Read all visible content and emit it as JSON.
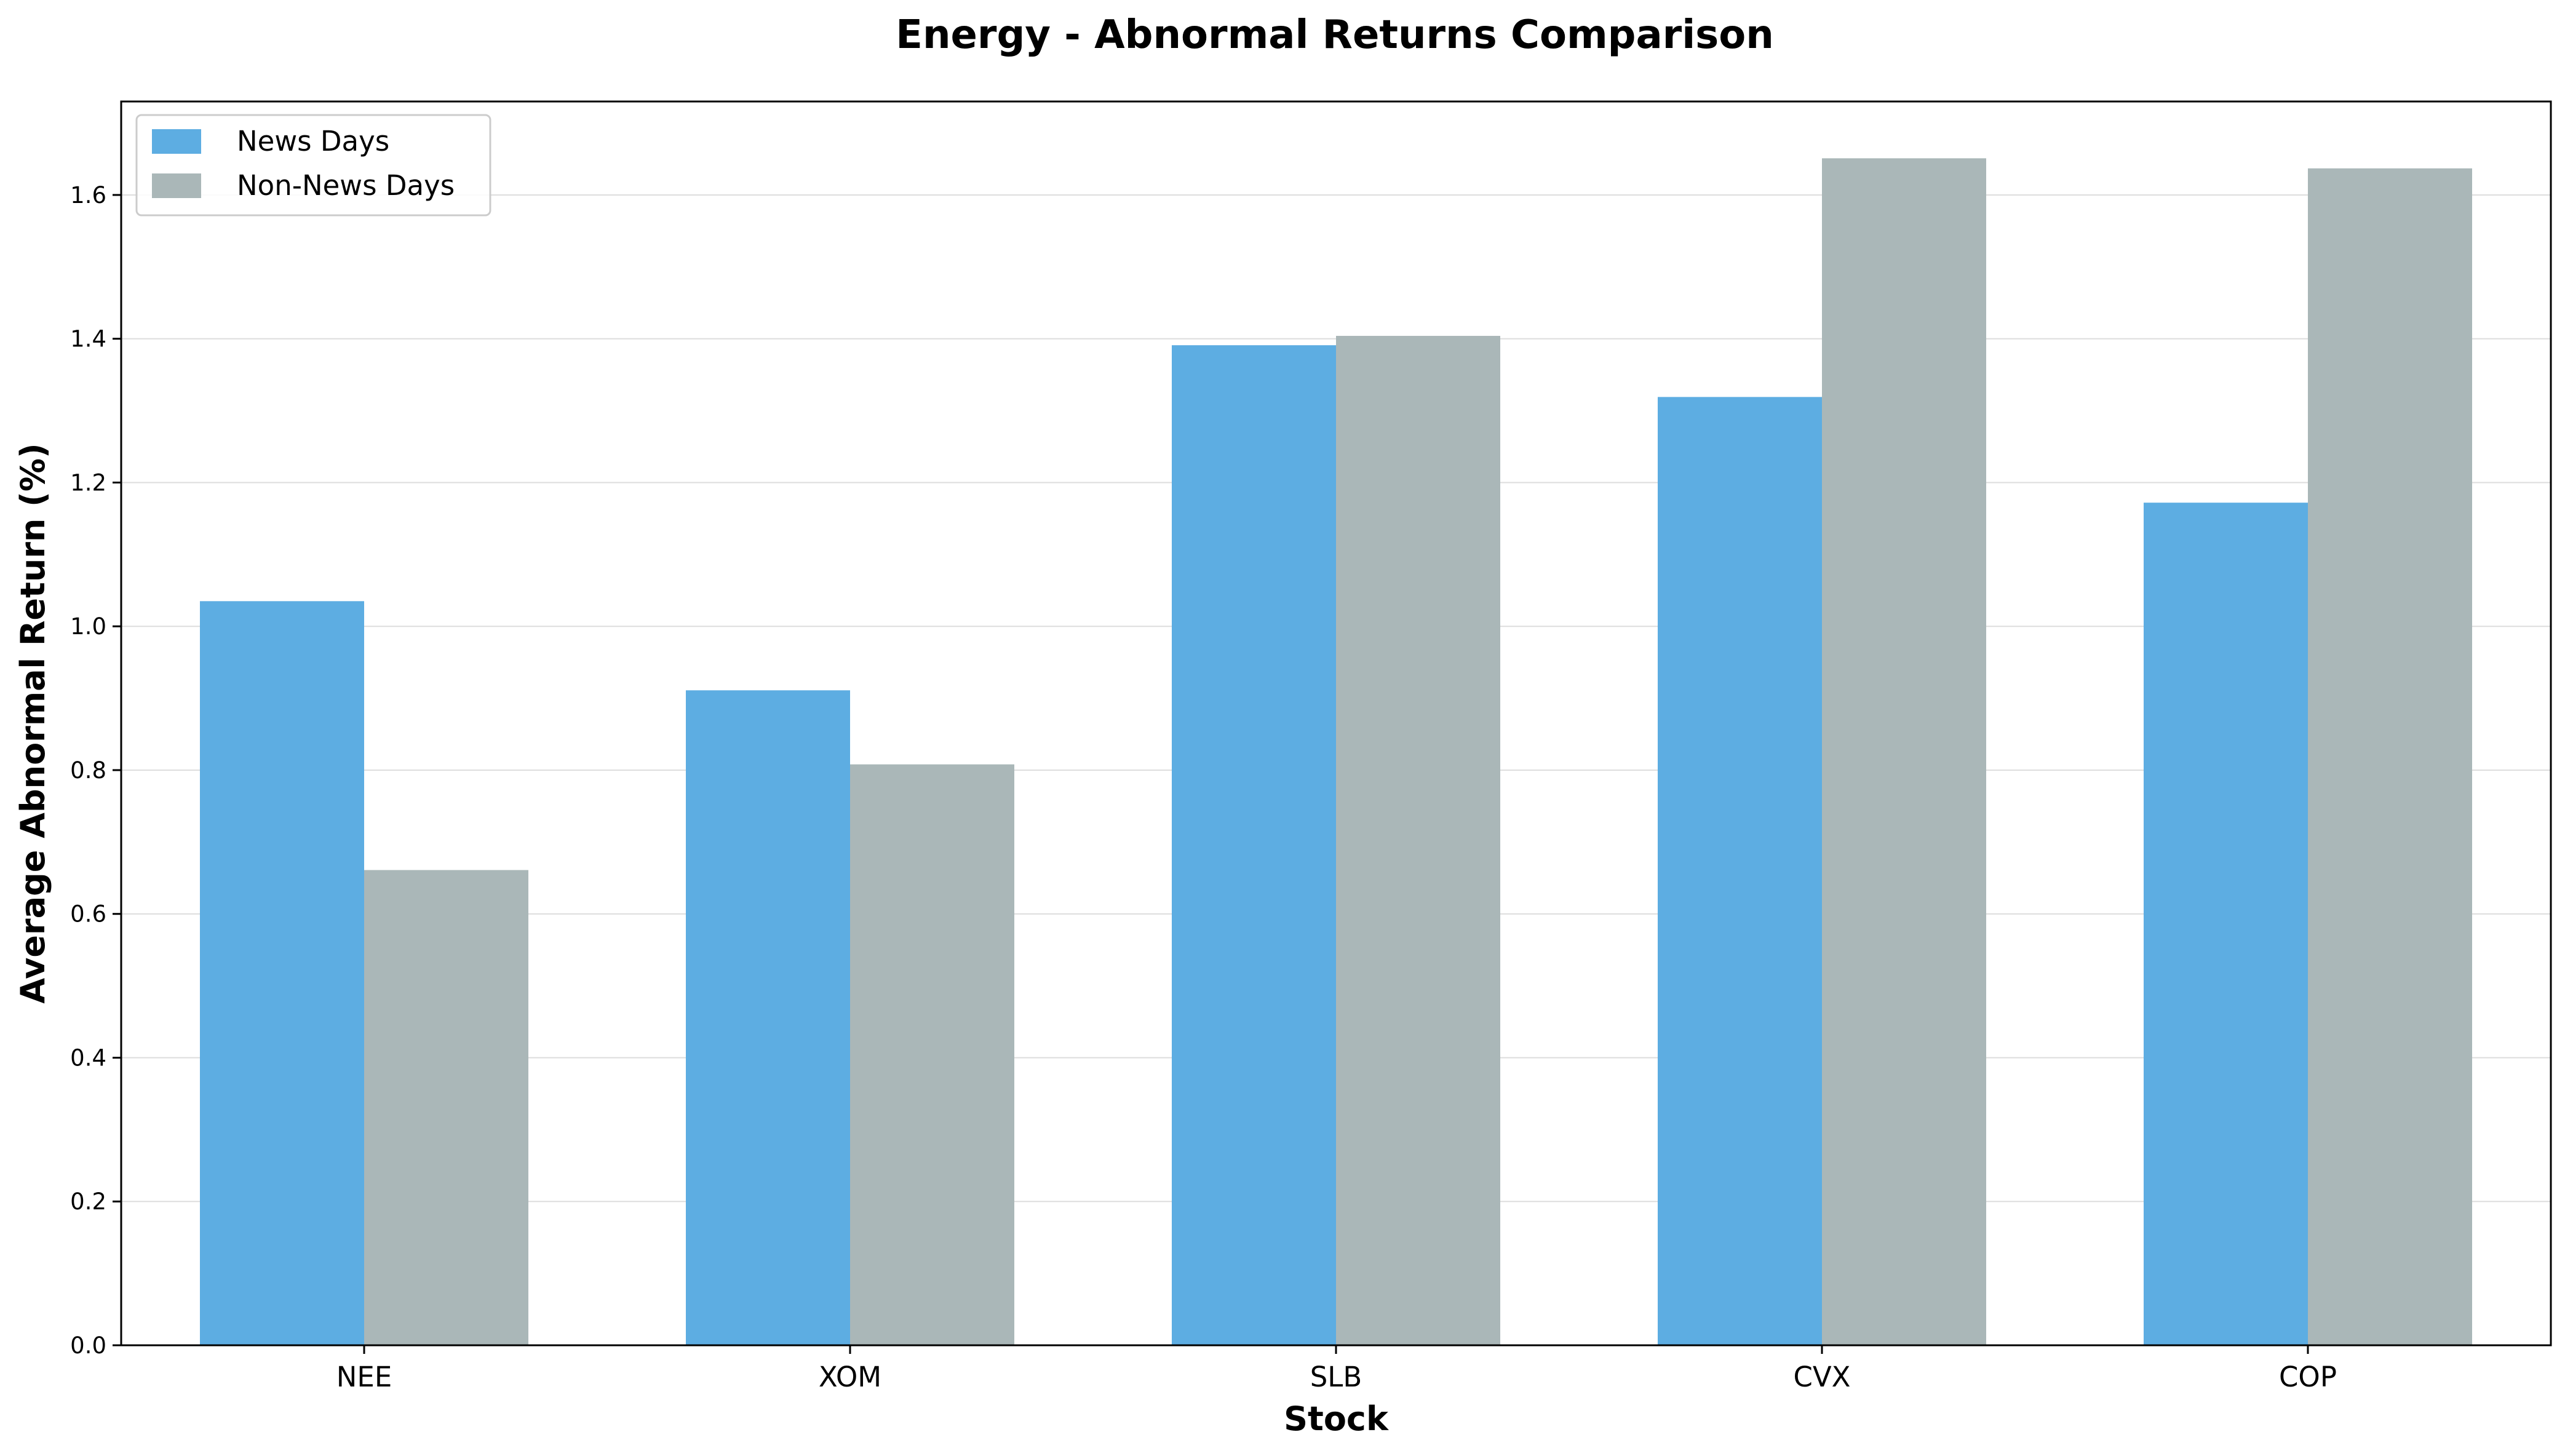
{
  "chart_data": {
    "type": "bar",
    "title": "Energy - Abnormal Returns Comparison",
    "xlabel": "Stock",
    "ylabel": "Average Abnormal Return (%)",
    "categories": [
      "NEE",
      "XOM",
      "SLB",
      "CVX",
      "COP"
    ],
    "series": [
      {
        "name": "News Days",
        "color": "#5DADE2",
        "values": [
          1.035,
          0.911,
          1.391,
          1.319,
          1.172
        ]
      },
      {
        "name": "Non-News Days",
        "color": "#AAB7B8",
        "values": [
          0.661,
          0.808,
          1.404,
          1.651,
          1.637
        ]
      }
    ],
    "ylim": [
      0,
      1.73
    ],
    "yticks": [
      "0.0",
      "0.2",
      "0.4",
      "0.6",
      "0.8",
      "1.0",
      "1.2",
      "1.4",
      "1.6"
    ],
    "grid": true,
    "legend_position": "top-left"
  }
}
